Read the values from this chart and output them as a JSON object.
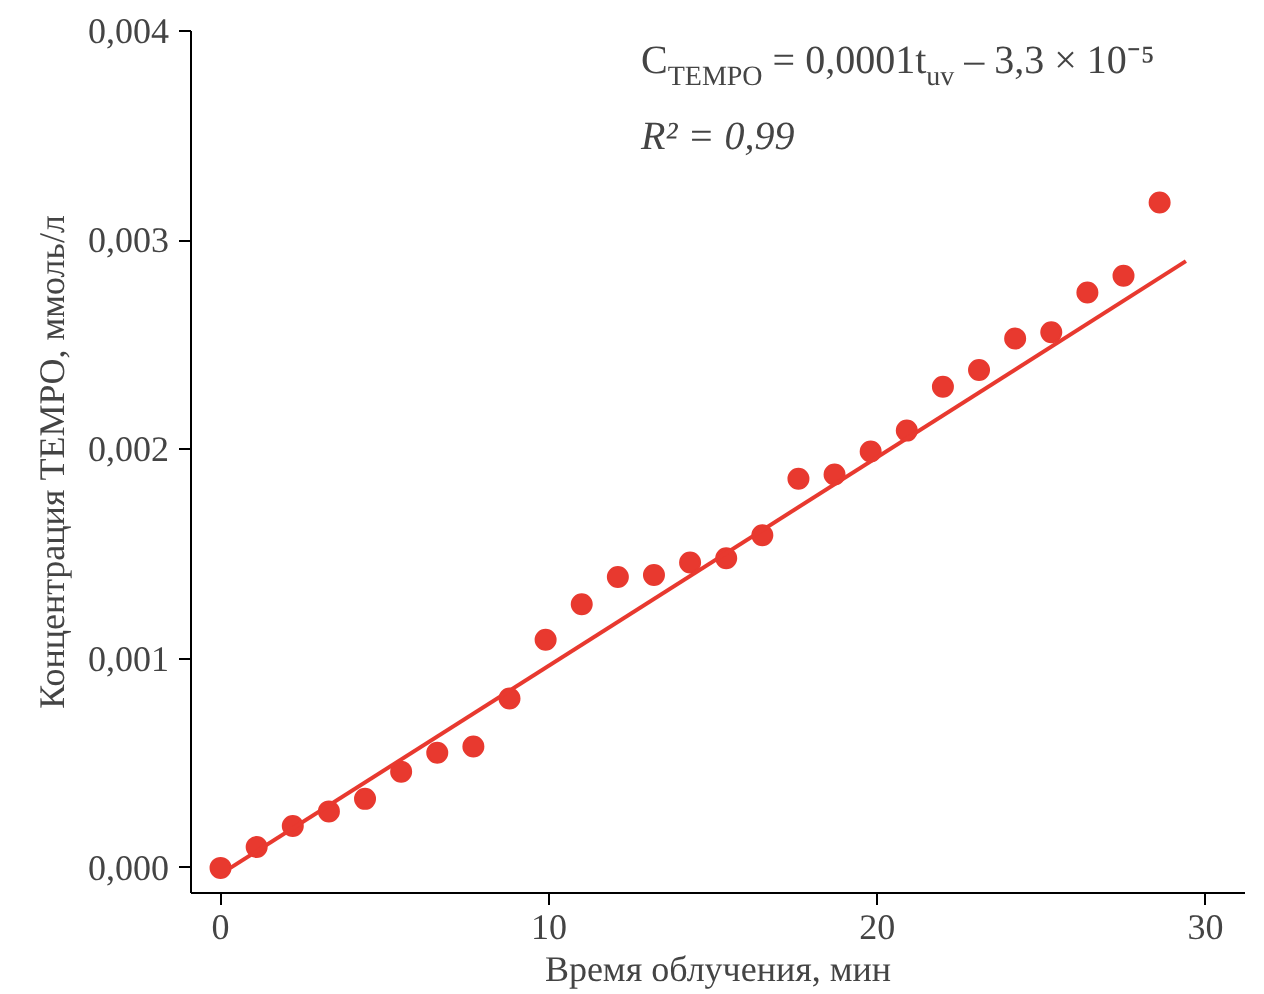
{
  "chart_data": {
    "type": "scatter",
    "xlabel": "Время облучения, мин",
    "ylabel": "Концентрация TEMPO, ммоль/л",
    "xlim": [
      -0.9,
      31.2
    ],
    "ylim": [
      -0.00012,
      0.004
    ],
    "xticks": [
      0,
      10,
      20,
      30
    ],
    "yticks": [
      {
        "value": 0,
        "label": "0,000"
      },
      {
        "value": 0.001,
        "label": "0,001"
      },
      {
        "value": 0.002,
        "label": "0,002"
      },
      {
        "value": 0.003,
        "label": "0,003"
      },
      {
        "value": 0.004,
        "label": "0,004"
      }
    ],
    "grid": false,
    "annotations": [
      "C$_{TEMPO}$ = 0,0001t$_{uv}$ – 3,3 × 10⁻⁵",
      "R² = 0,99"
    ],
    "series": [
      {
        "marker": "circle",
        "color": "#e8392f",
        "x": [
          0,
          1.1,
          2.2,
          3.3,
          4.4,
          5.5,
          6.6,
          7.7,
          8.8,
          9.9,
          11,
          12.1,
          13.2,
          14.3,
          15.4,
          16.5,
          17.6,
          18.7,
          19.8,
          20.9,
          22,
          23.1,
          24.2,
          25.3,
          26.4,
          27.5,
          28.6
        ],
        "values": [
          0,
          0.0001,
          0.0002,
          0.00027,
          0.00033,
          0.00046,
          0.00055,
          0.00058,
          0.00081,
          0.00109,
          0.00126,
          0.00139,
          0.0014,
          0.00146,
          0.00148,
          0.00159,
          0.00186,
          0.00188,
          0.00199,
          0.00209,
          0.0023,
          0.00238,
          0.00253,
          0.00256,
          0.00275,
          0.00283,
          0.00318
        ]
      },
      {
        "type": "line",
        "color": "#e8392f",
        "x": [
          0.3,
          29.4
        ],
        "values": [
          0,
          0.0029
        ]
      }
    ]
  }
}
